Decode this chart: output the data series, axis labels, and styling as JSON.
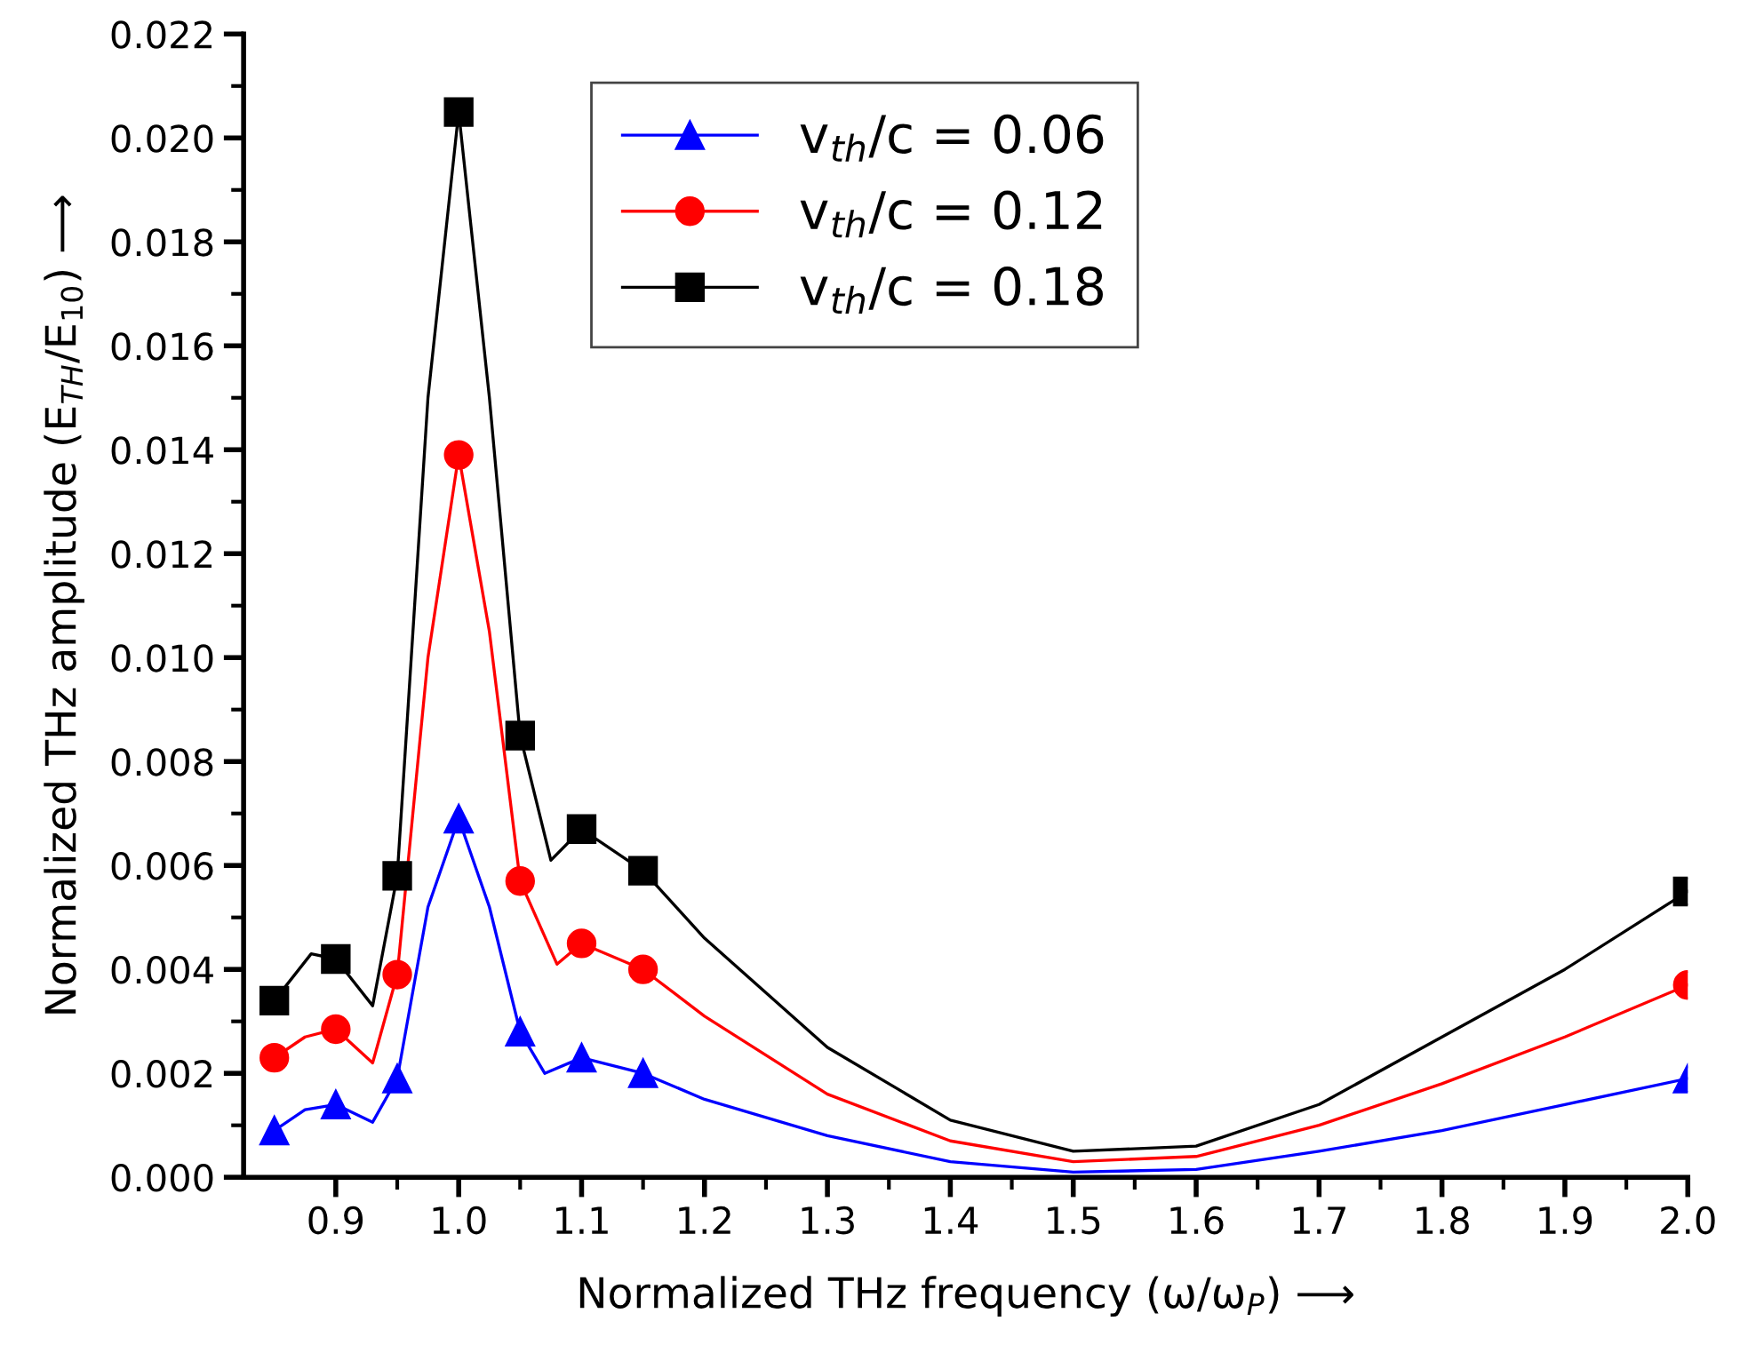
{
  "chart_data": {
    "type": "line",
    "xlabel": "Normalized THz frequency (ω/ω$_{P}$) ⟶",
    "ylabel": "Normalized THz amplitude (E$_{TH}$/E$_{10}$) ⟶",
    "x": [
      0.85,
      0.9,
      0.95,
      1.0,
      1.05,
      1.1,
      1.15,
      2.0
    ],
    "series": [
      {
        "color": "#0000ff",
        "x": [
          0.85,
          0.875,
          0.9,
          0.93,
          0.95,
          0.975,
          1.0,
          1.025,
          1.05,
          1.07,
          1.1,
          1.15,
          1.2,
          1.3,
          1.4,
          1.5,
          1.6,
          1.7,
          1.8,
          1.9,
          2.0
        ],
        "values": [
          0.0009,
          0.0013,
          0.0014,
          0.00106,
          0.0019,
          0.0052,
          0.0069,
          0.0052,
          0.0028,
          0.002,
          0.0023,
          0.002,
          0.0015,
          0.0008,
          0.0003,
          0.0001,
          0.00015,
          0.0005,
          0.0009,
          0.0014,
          0.0019
        ]
      },
      {
        "color": "#ff0000",
        "x": [
          0.85,
          0.875,
          0.9,
          0.93,
          0.95,
          0.975,
          1.0,
          1.025,
          1.05,
          1.08,
          1.1,
          1.15,
          1.2,
          1.3,
          1.4,
          1.5,
          1.6,
          1.7,
          1.8,
          1.9,
          2.0
        ],
        "values": [
          0.0023,
          0.0027,
          0.00285,
          0.0022,
          0.0039,
          0.01,
          0.0139,
          0.0105,
          0.0057,
          0.0041,
          0.0045,
          0.004,
          0.0031,
          0.0016,
          0.0007,
          0.0003,
          0.0004,
          0.001,
          0.0018,
          0.0027,
          0.0037
        ]
      },
      {
        "color": "#000000",
        "x": [
          0.85,
          0.88,
          0.9,
          0.93,
          0.95,
          0.975,
          1.0,
          1.025,
          1.05,
          1.075,
          1.1,
          1.15,
          1.2,
          1.3,
          1.4,
          1.5,
          1.6,
          1.7,
          1.8,
          1.9,
          2.0
        ],
        "values": [
          0.0034,
          0.0043,
          0.0042,
          0.0033,
          0.0058,
          0.015,
          0.0205,
          0.015,
          0.0085,
          0.0061,
          0.0067,
          0.0059,
          0.0046,
          0.0025,
          0.0011,
          0.0005,
          0.0006,
          0.0014,
          0.0027,
          0.004,
          0.0055
        ]
      },
      {
        "type": "scatter",
        "name": "v$_{th}$/c = 0.06",
        "color": "#0000ff",
        "marker": "triangle",
        "line_style": "solid",
        "values": [
          0.0009,
          0.0014,
          0.0019,
          0.0069,
          0.0028,
          0.0023,
          0.002,
          0.0019
        ]
      },
      {
        "type": "scatter",
        "name": "v$_{th}$/c = 0.12",
        "color": "#ff0000",
        "marker": "circle",
        "line_style": "solid",
        "values": [
          0.0023,
          0.00285,
          0.0039,
          0.0139,
          0.0057,
          0.0045,
          0.004,
          0.0037
        ]
      },
      {
        "type": "scatter",
        "name": "v$_{th}$/c = 0.18",
        "color": "#000000",
        "marker": "square",
        "line_style": "solid",
        "values": [
          0.0034,
          0.0042,
          0.0058,
          0.0205,
          0.0085,
          0.0067,
          0.0059,
          0.0055
        ]
      }
    ],
    "xlim": [
      0.825,
      2.0
    ],
    "ylim": [
      0.0,
      0.022
    ],
    "xticks": [
      {
        "value": 0.9,
        "label": "0.9"
      },
      {
        "value": 1.0,
        "label": "1.0"
      },
      {
        "value": 1.1,
        "label": "1.1"
      },
      {
        "value": 1.2,
        "label": "1.2"
      },
      {
        "value": 1.3,
        "label": "1.3"
      },
      {
        "value": 1.4,
        "label": "1.4"
      },
      {
        "value": 1.5,
        "label": "1.5"
      },
      {
        "value": 1.6,
        "label": "1.6"
      },
      {
        "value": 1.7,
        "label": "1.7"
      },
      {
        "value": 1.8,
        "label": "1.8"
      },
      {
        "value": 1.9,
        "label": "1.9"
      },
      {
        "value": 2.0,
        "label": "2.0"
      }
    ],
    "yticks": [
      {
        "value": 0.0,
        "label": "0.000"
      },
      {
        "value": 0.002,
        "label": "0.002"
      },
      {
        "value": 0.004,
        "label": "0.004"
      },
      {
        "value": 0.006,
        "label": "0.006"
      },
      {
        "value": 0.008,
        "label": "0.008"
      },
      {
        "value": 0.01,
        "label": "0.010"
      },
      {
        "value": 0.012,
        "label": "0.012"
      },
      {
        "value": 0.014,
        "label": "0.014"
      },
      {
        "value": 0.016,
        "label": "0.016"
      },
      {
        "value": 0.018,
        "label": "0.018"
      },
      {
        "value": 0.02,
        "label": "0.020"
      },
      {
        "value": 0.022,
        "label": "0.022"
      }
    ],
    "grid": false,
    "legend": "top",
    "line_style": "solid"
  }
}
